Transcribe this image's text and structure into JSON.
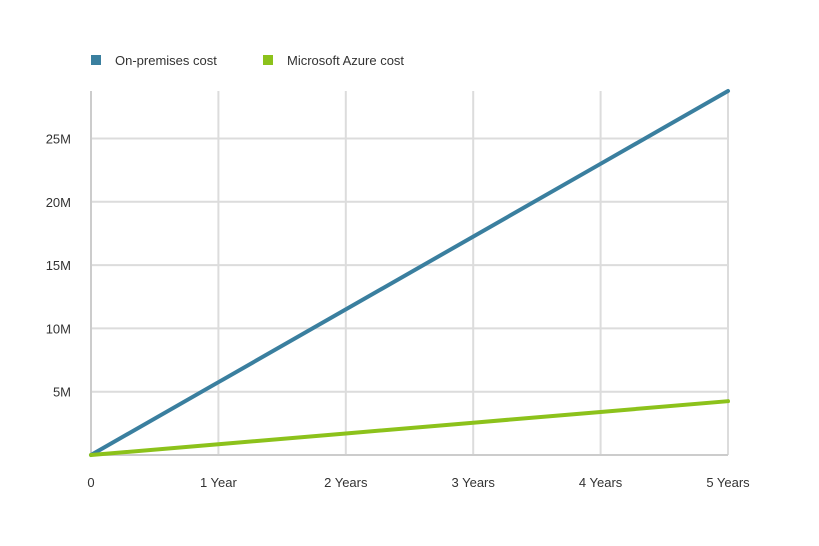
{
  "chart_data": {
    "type": "line",
    "x": [
      "0",
      "1 Year",
      "2 Years",
      "3 Years",
      "4 Years",
      "5 Years"
    ],
    "series": [
      {
        "name": "On-premises cost",
        "color": "#3a7f9f",
        "values": [
          0,
          5750000,
          11500000,
          17250000,
          23000000,
          28750000
        ]
      },
      {
        "name": "Microsoft Azure cost",
        "color": "#8cc21b",
        "values": [
          0,
          850000,
          1700000,
          2550000,
          3400000,
          4250000
        ]
      }
    ],
    "y_ticks": [
      {
        "value": 5000000,
        "label": "5M"
      },
      {
        "value": 10000000,
        "label": "10M"
      },
      {
        "value": 15000000,
        "label": "15M"
      },
      {
        "value": 20000000,
        "label": "20M"
      },
      {
        "value": 25000000,
        "label": "25M"
      }
    ],
    "ylim": [
      0,
      28750000
    ],
    "grid": true,
    "legend_position": "top-left",
    "title": "",
    "xlabel": "",
    "ylabel": ""
  }
}
